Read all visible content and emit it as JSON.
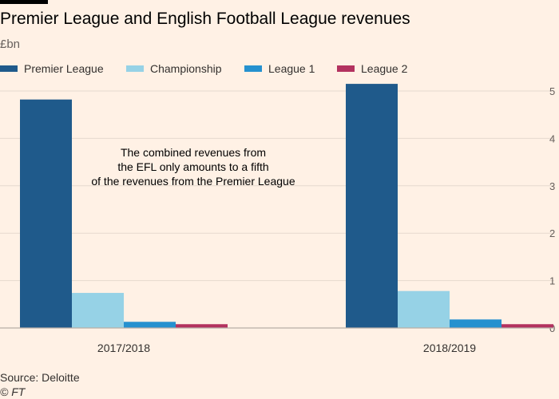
{
  "title": "Premier League and English Football League revenues",
  "subtitle": "£bn",
  "source": "Source: Deloitte",
  "copyright": "© FT",
  "colors": {
    "grid": "#e6d9ce",
    "axis": "#b7aea6",
    "tick_text": "#66605c"
  },
  "chart_data": {
    "type": "bar",
    "title": "Premier League and English Football League revenues",
    "ylabel": "£bn",
    "categories": [
      "2017/2018",
      "2018/2019"
    ],
    "series": [
      {
        "name": "Premier League",
        "color": "#1f5a8b",
        "values": [
          4.82,
          5.15
        ]
      },
      {
        "name": "Championship",
        "color": "#96d2e6",
        "values": [
          0.74,
          0.78
        ]
      },
      {
        "name": "League 1",
        "color": "#2591cf",
        "values": [
          0.13,
          0.18
        ]
      },
      {
        "name": "League 2",
        "color": "#b3325f",
        "values": [
          0.08,
          0.08
        ]
      }
    ],
    "ylim": [
      0,
      5
    ],
    "yticks": [
      0,
      1,
      2,
      3,
      4,
      5
    ],
    "grid": true,
    "legend": "top-left",
    "annotation": {
      "lines": [
        "The combined revenues from",
        "the EFL only amounts to a fifth",
        "of the revenues from the Premier League"
      ]
    }
  }
}
